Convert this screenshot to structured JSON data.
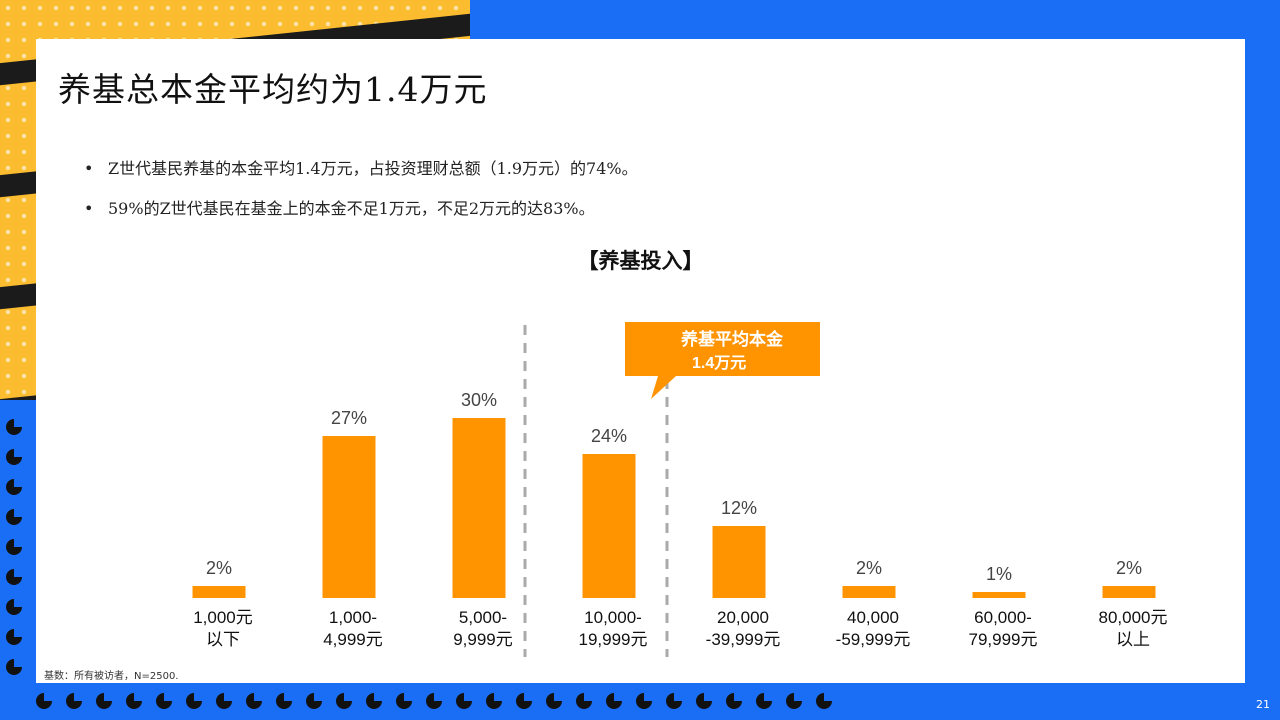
{
  "slide": {
    "title": "养基总本金平均约为1.4万元",
    "bullets": [
      "Z世代基民养基的本金平均1.4万元，占投资理财总额（1.9万元）的74%。",
      "59%的Z世代基民在基金上的本金不足1万元，不足2万元的达83%。"
    ],
    "footnote": "基数：所有被访者，N=2500.",
    "page_number": "21"
  },
  "colors": {
    "bar": "#ff9300",
    "background": "#1a6ef5",
    "accent_yellow": "#fbbd2f",
    "divider": "#aaaaaa"
  },
  "chart_data": {
    "type": "bar",
    "title": "【养基投入】",
    "categories": [
      "1,000元\n以下",
      "1,000-\n4,999元",
      "5,000-\n9,999元",
      "10,000-\n19,999元",
      "20,000\n-39,999元",
      "40,000\n-59,999元",
      "60,000-\n79,999元",
      "80,000元\n以上"
    ],
    "values": [
      2,
      27,
      30,
      24,
      12,
      2,
      1,
      2
    ],
    "value_labels": [
      "2%",
      "27%",
      "30%",
      "24%",
      "12%",
      "2%",
      "1%",
      "2%"
    ],
    "unit": "%",
    "ylim": [
      0,
      30
    ],
    "grid": false,
    "annotation": {
      "text_line1": "养基平均本金",
      "text_line2": "1.4万元"
    }
  }
}
